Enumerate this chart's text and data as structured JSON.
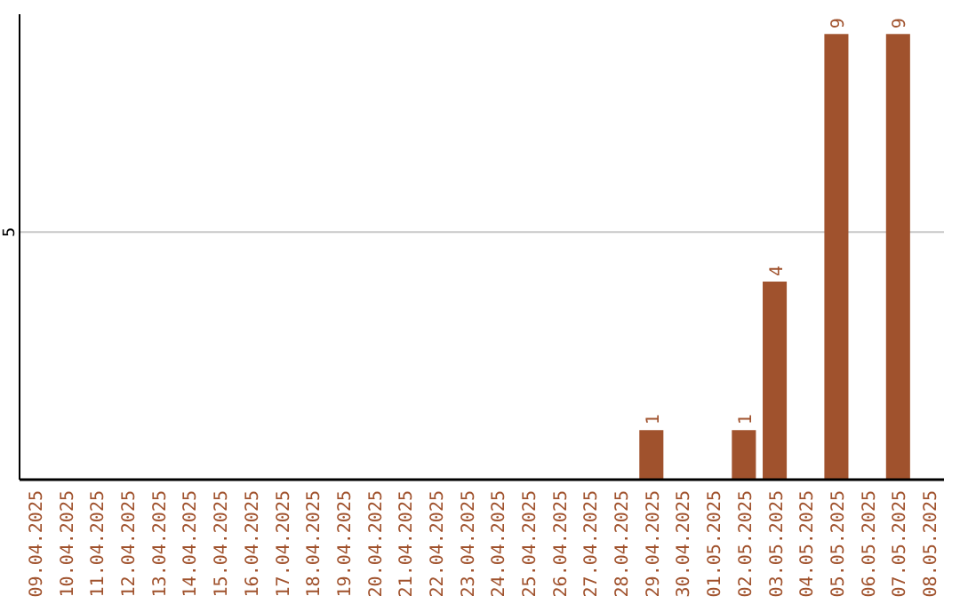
{
  "chart_data": {
    "type": "bar",
    "categories": [
      "09.04.2025",
      "10.04.2025",
      "11.04.2025",
      "12.04.2025",
      "13.04.2025",
      "14.04.2025",
      "15.04.2025",
      "16.04.2025",
      "17.04.2025",
      "18.04.2025",
      "19.04.2025",
      "20.04.2025",
      "21.04.2025",
      "22.04.2025",
      "23.04.2025",
      "24.04.2025",
      "25.04.2025",
      "26.04.2025",
      "27.04.2025",
      "28.04.2025",
      "29.04.2025",
      "30.04.2025",
      "01.05.2025",
      "02.05.2025",
      "03.05.2025",
      "04.05.2025",
      "05.05.2025",
      "06.05.2025",
      "07.05.2025",
      "08.05.2025"
    ],
    "values": [
      null,
      null,
      null,
      null,
      null,
      null,
      null,
      null,
      null,
      null,
      null,
      null,
      null,
      null,
      null,
      null,
      null,
      null,
      null,
      null,
      1,
      null,
      null,
      1,
      4,
      null,
      9,
      null,
      9,
      null
    ],
    "color": "#a0522d",
    "ylim": [
      0,
      9.4
    ],
    "yticks": [
      5
    ],
    "grid": "y",
    "data_labels": true
  }
}
